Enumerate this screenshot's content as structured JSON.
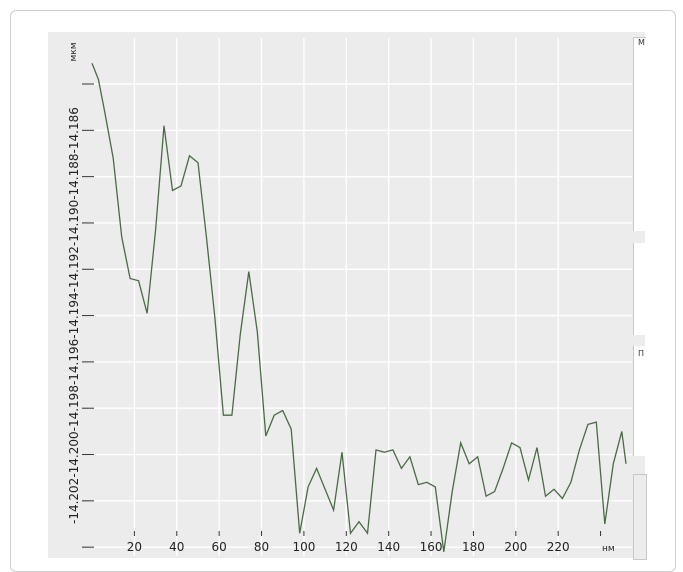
{
  "panels": {
    "panel_a_label": "M",
    "panel_c_label": "П"
  },
  "colors": {
    "line": "#4a6b45",
    "grid": "#ffffff",
    "plot_bg": "#ececec"
  },
  "chart_data": {
    "type": "line",
    "title": "",
    "xlabel": "нм",
    "ylabel": "мкм",
    "xlim": [
      0,
      252
    ],
    "ylim": [
      -14.203,
      -14.1821
    ],
    "grid": true,
    "x_ticks": [
      20,
      40,
      60,
      80,
      100,
      120,
      140,
      160,
      180,
      200,
      220
    ],
    "y_ticks": [
      -14.202,
      -14.2,
      -14.198,
      -14.196,
      -14.194,
      -14.192,
      -14.19,
      -14.188,
      -14.186
    ],
    "y_tick_labels": [
      "-14.202",
      "-14.200",
      "-14.198",
      "-14.196",
      "-14.194",
      "-14.192",
      "-14.190",
      "-14.188",
      "-14.186"
    ],
    "series": [
      {
        "x": [
          0,
          3,
          6,
          10,
          14,
          18,
          22,
          26,
          30,
          34,
          38,
          42,
          46,
          50,
          54,
          58,
          62,
          66,
          70,
          74,
          78,
          82,
          86,
          90,
          94,
          98,
          102,
          106,
          110,
          114,
          118,
          122,
          126,
          130,
          134,
          138,
          142,
          146,
          150,
          154,
          158,
          162,
          166,
          170,
          174,
          178,
          182,
          186,
          190,
          194,
          198,
          202,
          206,
          210,
          214,
          218,
          222,
          226,
          230,
          234,
          238,
          242,
          246,
          250,
          252
        ],
        "y": [
          -14.1831,
          -14.1838,
          -14.1852,
          -14.1872,
          -14.1906,
          -14.1924,
          -14.1925,
          -14.1939,
          -14.1903,
          -14.1858,
          -14.1886,
          -14.1884,
          -14.1871,
          -14.1874,
          -14.1906,
          -14.1941,
          -14.1983,
          -14.1983,
          -14.1948,
          -14.1921,
          -14.1947,
          -14.1992,
          -14.1983,
          -14.1981,
          -14.1989,
          -14.2034,
          -14.2014,
          -14.2006,
          -14.2015,
          -14.2024,
          -14.1999,
          -14.2034,
          -14.2029,
          -14.2034,
          -14.1998,
          -14.1999,
          -14.1998,
          -14.2006,
          -14.2001,
          -14.2013,
          -14.2012,
          -14.2014,
          -14.2042,
          -14.2016,
          -14.1995,
          -14.2004,
          -14.2001,
          -14.2018,
          -14.2016,
          -14.2006,
          -14.1995,
          -14.1997,
          -14.2011,
          -14.1997,
          -14.2018,
          -14.2015,
          -14.2019,
          -14.2012,
          -14.1998,
          -14.1987,
          -14.1986,
          -14.203,
          -14.2004,
          -14.199,
          -14.2004
        ]
      }
    ]
  }
}
